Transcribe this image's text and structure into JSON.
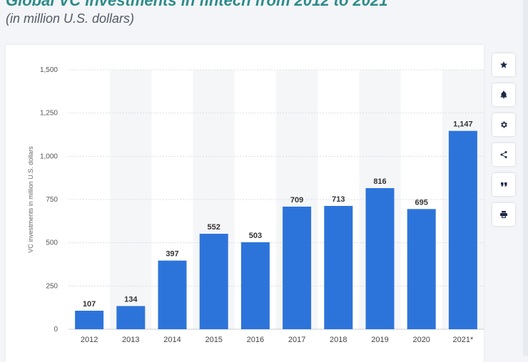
{
  "header": {
    "title": "Global VC investments in fintech from 2012 to 2021",
    "subtitle": "(in million U.S. dollars)"
  },
  "toolbar": {
    "icons": [
      "star-icon",
      "bell-icon",
      "gear-icon",
      "share-icon",
      "quote-icon",
      "print-icon"
    ]
  },
  "colors": {
    "bar": "#2d74da",
    "band": "#f5f6f8",
    "grid": "#d9dde3",
    "text": "#4a4a4a"
  },
  "chart_data": {
    "type": "bar",
    "categories": [
      "2012",
      "2013",
      "2014",
      "2015",
      "2016",
      "2017",
      "2018",
      "2019",
      "2020",
      "2021*"
    ],
    "values": [
      107,
      134,
      397,
      552,
      503,
      709,
      713,
      816,
      695,
      1147
    ],
    "value_labels": [
      "107",
      "134",
      "397",
      "552",
      "503",
      "709",
      "713",
      "816",
      "695",
      "1,147"
    ],
    "ylabel": "VC investments in million U.S. dollars",
    "ylim": [
      0,
      1500
    ],
    "yticks": [
      0,
      250,
      500,
      750,
      1000,
      1250,
      1500
    ],
    "ytick_labels": [
      "0",
      "250",
      "500",
      "750",
      "1,000",
      "1,250",
      "1,500"
    ],
    "grid": true,
    "alternating_bands": true
  }
}
